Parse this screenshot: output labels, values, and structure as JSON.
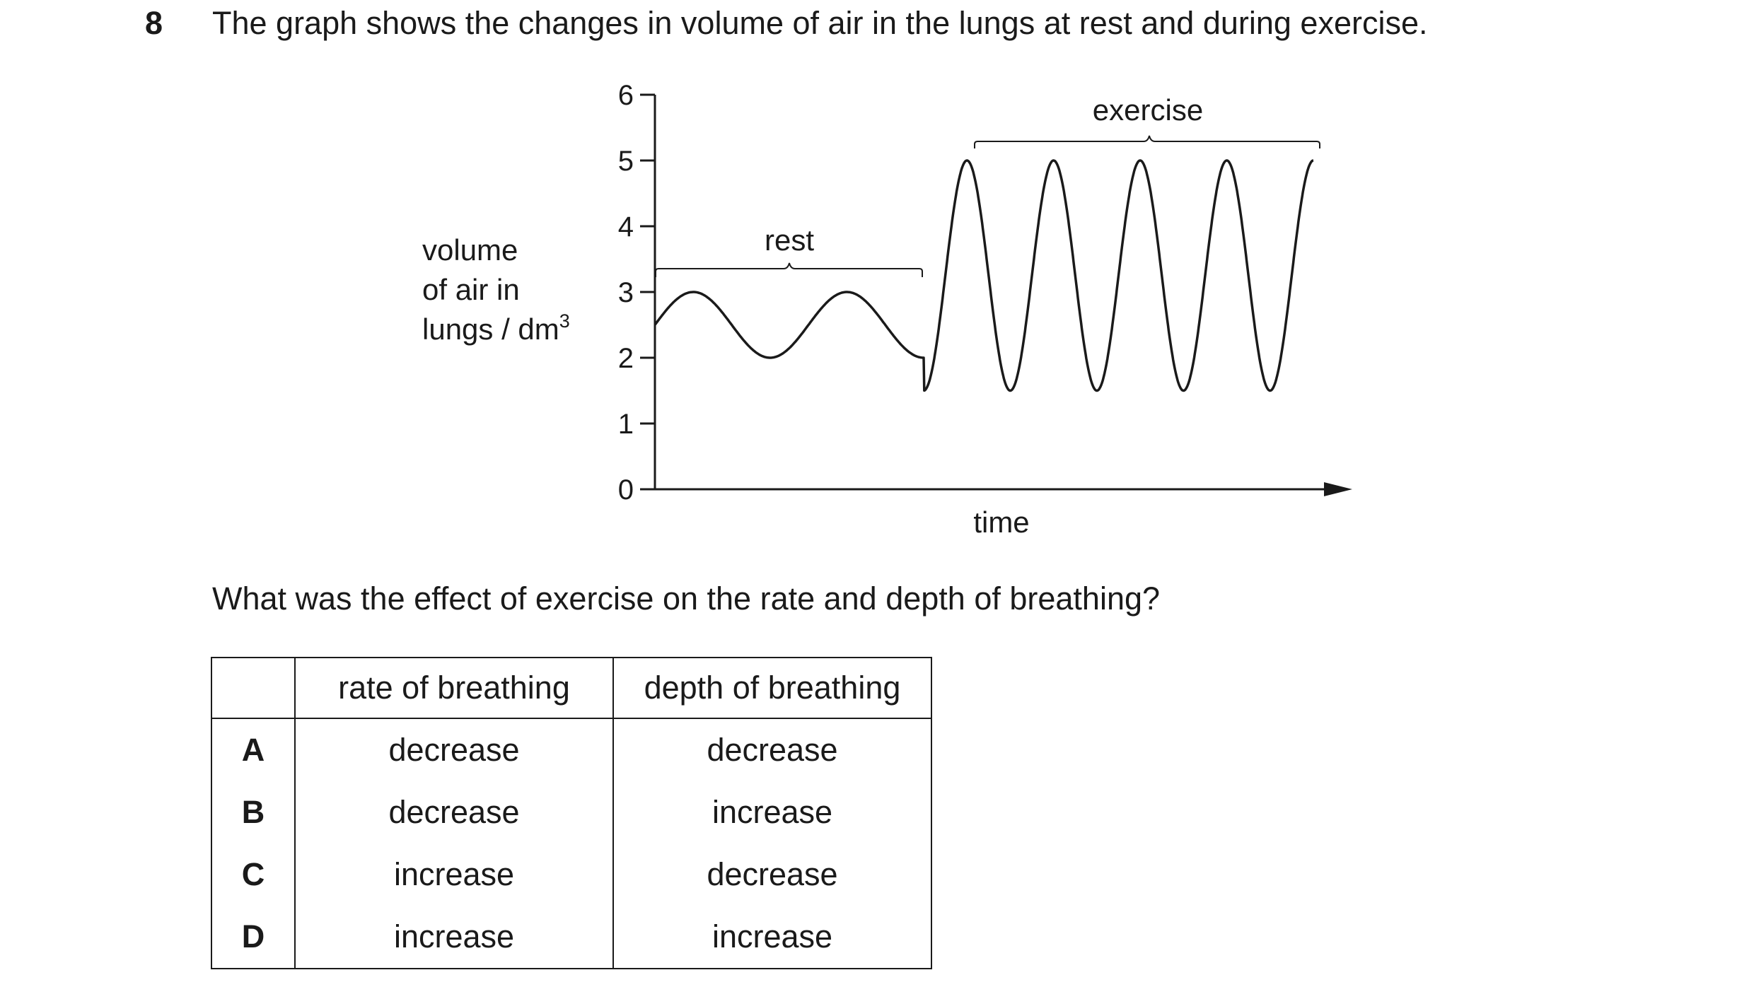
{
  "question": {
    "number": "8",
    "stem": "The graph shows the changes in volume of air in the lungs at rest and during exercise.",
    "prompt": "What was the effect of exercise on the rate and depth of breathing?"
  },
  "chart_data": {
    "type": "line",
    "ylabel_lines": [
      "volume",
      "of air in",
      "lungs / dm"
    ],
    "ylabel_superscript": "3",
    "xlabel": "time",
    "ylim": [
      0,
      6
    ],
    "yticks": [
      "0",
      "1",
      "2",
      "3",
      "4",
      "5",
      "6"
    ],
    "x_axis_arrow": true,
    "grid": false,
    "annotations": [
      {
        "label": "rest",
        "type": "brace"
      },
      {
        "label": "exercise",
        "type": "brace"
      }
    ],
    "series": [
      {
        "phases": [
          {
            "phase": "rest",
            "start_volume": 2.5,
            "min_volume": 2.0,
            "max_volume": 3.0,
            "breaths": 2
          },
          {
            "phase": "exercise",
            "min_volume": 1.5,
            "max_volume": 5.0,
            "breaths": 5
          }
        ]
      }
    ]
  },
  "table": {
    "headers": [
      "",
      "rate of breathing",
      "depth of breathing"
    ],
    "rows": [
      {
        "key": "A",
        "rate": "decrease",
        "depth": "decrease"
      },
      {
        "key": "B",
        "rate": "decrease",
        "depth": "increase"
      },
      {
        "key": "C",
        "rate": "increase",
        "depth": "decrease"
      },
      {
        "key": "D",
        "rate": "increase",
        "depth": "increase"
      }
    ]
  }
}
